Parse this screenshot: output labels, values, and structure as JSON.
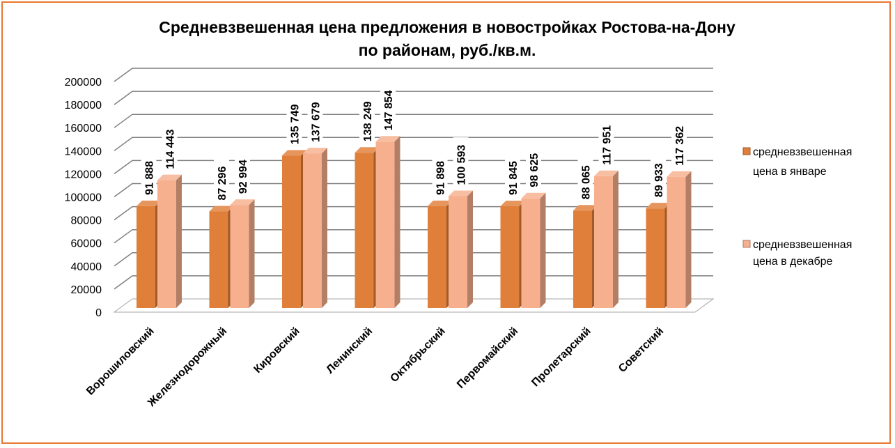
{
  "chart_data": {
    "type": "bar",
    "title": [
      "Средневзвешенная цена предложения в новостройках Ростова-на-Дону",
      "по районам, руб./кв.м."
    ],
    "categories": [
      "Ворошиловский",
      "Железнодорожный",
      "Кировский",
      "Ленинский",
      "Октябрьский",
      "Первомайский",
      "Пролетарский",
      "Советский"
    ],
    "series": [
      {
        "name": [
          "средневзвешенная",
          "цена в январе"
        ],
        "color": "#e07f3a",
        "values": [
          91888,
          87296,
          135749,
          138249,
          91898,
          91845,
          88065,
          89933
        ],
        "labels": [
          "91 888",
          "87 296",
          "135 749",
          "138 249",
          "91 898",
          "91 845",
          "88 065",
          "89 933"
        ]
      },
      {
        "name": [
          "средневзвешенная",
          "цена в декабре"
        ],
        "color": "#f7b08e",
        "values": [
          114443,
          92994,
          137679,
          147854,
          100593,
          98625,
          117951,
          117362
        ],
        "labels": [
          "114 443",
          "92 994",
          "137 679",
          "147 854",
          "100 593",
          "98 625",
          "117 951",
          "117 362"
        ]
      }
    ],
    "yticks": [
      "0",
      "20000",
      "40000",
      "60000",
      "80000",
      "100000",
      "120000",
      "140000",
      "160000",
      "180000",
      "200000"
    ],
    "ylim": [
      0,
      200000
    ],
    "grid": true,
    "legend": "right"
  }
}
